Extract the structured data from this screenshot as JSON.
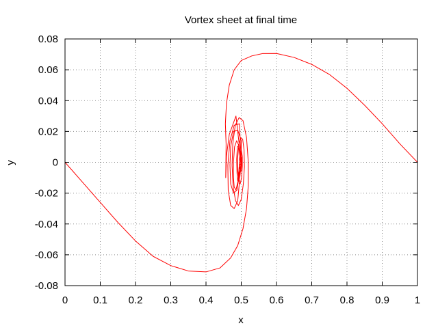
{
  "chart_data": {
    "type": "line",
    "title": "Vortex sheet at final time",
    "xlabel": "x",
    "ylabel": "y",
    "xlim": [
      0,
      1
    ],
    "ylim": [
      -0.08,
      0.08
    ],
    "x_ticks": [
      "0",
      "0.1",
      "0.2",
      "0.3",
      "0.4",
      "0.5",
      "0.6",
      "0.7",
      "0.8",
      "0.9",
      "1"
    ],
    "y_ticks": [
      "-0.08",
      "-0.06",
      "-0.04",
      "-0.02",
      "0",
      "0.02",
      "0.04",
      "0.06",
      "0.08"
    ],
    "grid": true,
    "series": [
      {
        "color": "#ff0000",
        "points": [
          [
            0.0,
            0.0
          ],
          [
            0.05,
            -0.013
          ],
          [
            0.1,
            -0.026
          ],
          [
            0.15,
            -0.039
          ],
          [
            0.2,
            -0.051
          ],
          [
            0.25,
            -0.061
          ],
          [
            0.3,
            -0.067
          ],
          [
            0.35,
            -0.0705
          ],
          [
            0.4,
            -0.0711
          ],
          [
            0.44,
            -0.0685
          ],
          [
            0.47,
            -0.062
          ],
          [
            0.49,
            -0.054
          ],
          [
            0.505,
            -0.043
          ],
          [
            0.515,
            -0.03
          ],
          [
            0.52,
            -0.015
          ],
          [
            0.52,
            0.0
          ],
          [
            0.515,
            0.016
          ],
          [
            0.505,
            0.027
          ],
          [
            0.494,
            0.029
          ],
          [
            0.483,
            0.024
          ],
          [
            0.476,
            0.012
          ],
          [
            0.474,
            -0.002
          ],
          [
            0.477,
            -0.016
          ],
          [
            0.484,
            -0.025
          ],
          [
            0.492,
            -0.028
          ],
          [
            0.5,
            -0.024
          ],
          [
            0.506,
            -0.014
          ],
          [
            0.509,
            -0.003
          ],
          [
            0.508,
            0.008
          ],
          [
            0.504,
            0.015
          ],
          [
            0.498,
            0.016
          ],
          [
            0.493,
            0.011
          ],
          [
            0.49,
            0.003
          ],
          [
            0.49,
            -0.005
          ],
          [
            0.493,
            -0.012
          ],
          [
            0.497,
            -0.014
          ],
          [
            0.501,
            -0.01
          ],
          [
            0.503,
            -0.003
          ],
          [
            0.503,
            0.004
          ],
          [
            0.5,
            0.008
          ],
          [
            0.497,
            0.007
          ],
          [
            0.495,
            0.002
          ],
          [
            0.496,
            -0.004
          ],
          [
            0.499,
            -0.006
          ],
          [
            0.501,
            -0.002
          ],
          [
            0.501,
            0.003
          ],
          [
            0.499,
            0.004
          ],
          [
            0.498,
            0.0
          ],
          [
            0.5,
            0.0
          ],
          [
            0.498,
            0.0
          ],
          [
            0.495,
            0.006
          ],
          [
            0.493,
            0.011
          ],
          [
            0.489,
            0.01
          ],
          [
            0.487,
            0.002
          ],
          [
            0.488,
            -0.007
          ],
          [
            0.49,
            -0.012
          ],
          [
            0.493,
            -0.01
          ],
          [
            0.495,
            0.0
          ],
          [
            0.5,
            0.0
          ],
          [
            0.495,
            0.01
          ],
          [
            0.487,
            0.014
          ],
          [
            0.481,
            0.01
          ],
          [
            0.478,
            0.0
          ],
          [
            0.478,
            -0.01
          ],
          [
            0.48,
            -0.016
          ],
          [
            0.485,
            -0.018
          ],
          [
            0.491,
            -0.012
          ],
          [
            0.494,
            -0.003
          ],
          [
            0.5,
            0.0
          ],
          [
            0.5,
            0.014
          ],
          [
            0.49,
            0.021
          ],
          [
            0.478,
            0.02
          ],
          [
            0.47,
            0.01
          ],
          [
            0.468,
            -0.002
          ],
          [
            0.47,
            -0.014
          ],
          [
            0.478,
            -0.02
          ],
          [
            0.488,
            -0.018
          ],
          [
            0.5,
            0.0
          ],
          [
            0.495,
            0.025
          ],
          [
            0.48,
            0.024
          ],
          [
            0.468,
            0.014
          ],
          [
            0.462,
            -0.002
          ],
          [
            0.463,
            -0.018
          ],
          [
            0.47,
            -0.028
          ],
          [
            0.48,
            -0.03
          ],
          [
            0.49,
            -0.025
          ],
          [
            0.5,
            0.0
          ],
          [
            0.485,
            0.03
          ],
          [
            0.466,
            0.018
          ],
          [
            0.458,
            0.004
          ],
          [
            0.456,
            -0.01
          ],
          [
            0.457,
            0.012
          ],
          [
            0.455,
            0.025
          ],
          [
            0.458,
            0.038
          ],
          [
            0.466,
            0.05
          ],
          [
            0.48,
            0.06
          ],
          [
            0.5,
            0.066
          ],
          [
            0.53,
            0.069
          ],
          [
            0.56,
            0.0705
          ],
          [
            0.6,
            0.0706
          ],
          [
            0.65,
            0.068
          ],
          [
            0.7,
            0.0635
          ],
          [
            0.75,
            0.057
          ],
          [
            0.8,
            0.048
          ],
          [
            0.85,
            0.037
          ],
          [
            0.9,
            0.025
          ],
          [
            0.95,
            0.012
          ],
          [
            1.0,
            0.0
          ]
        ]
      }
    ]
  }
}
